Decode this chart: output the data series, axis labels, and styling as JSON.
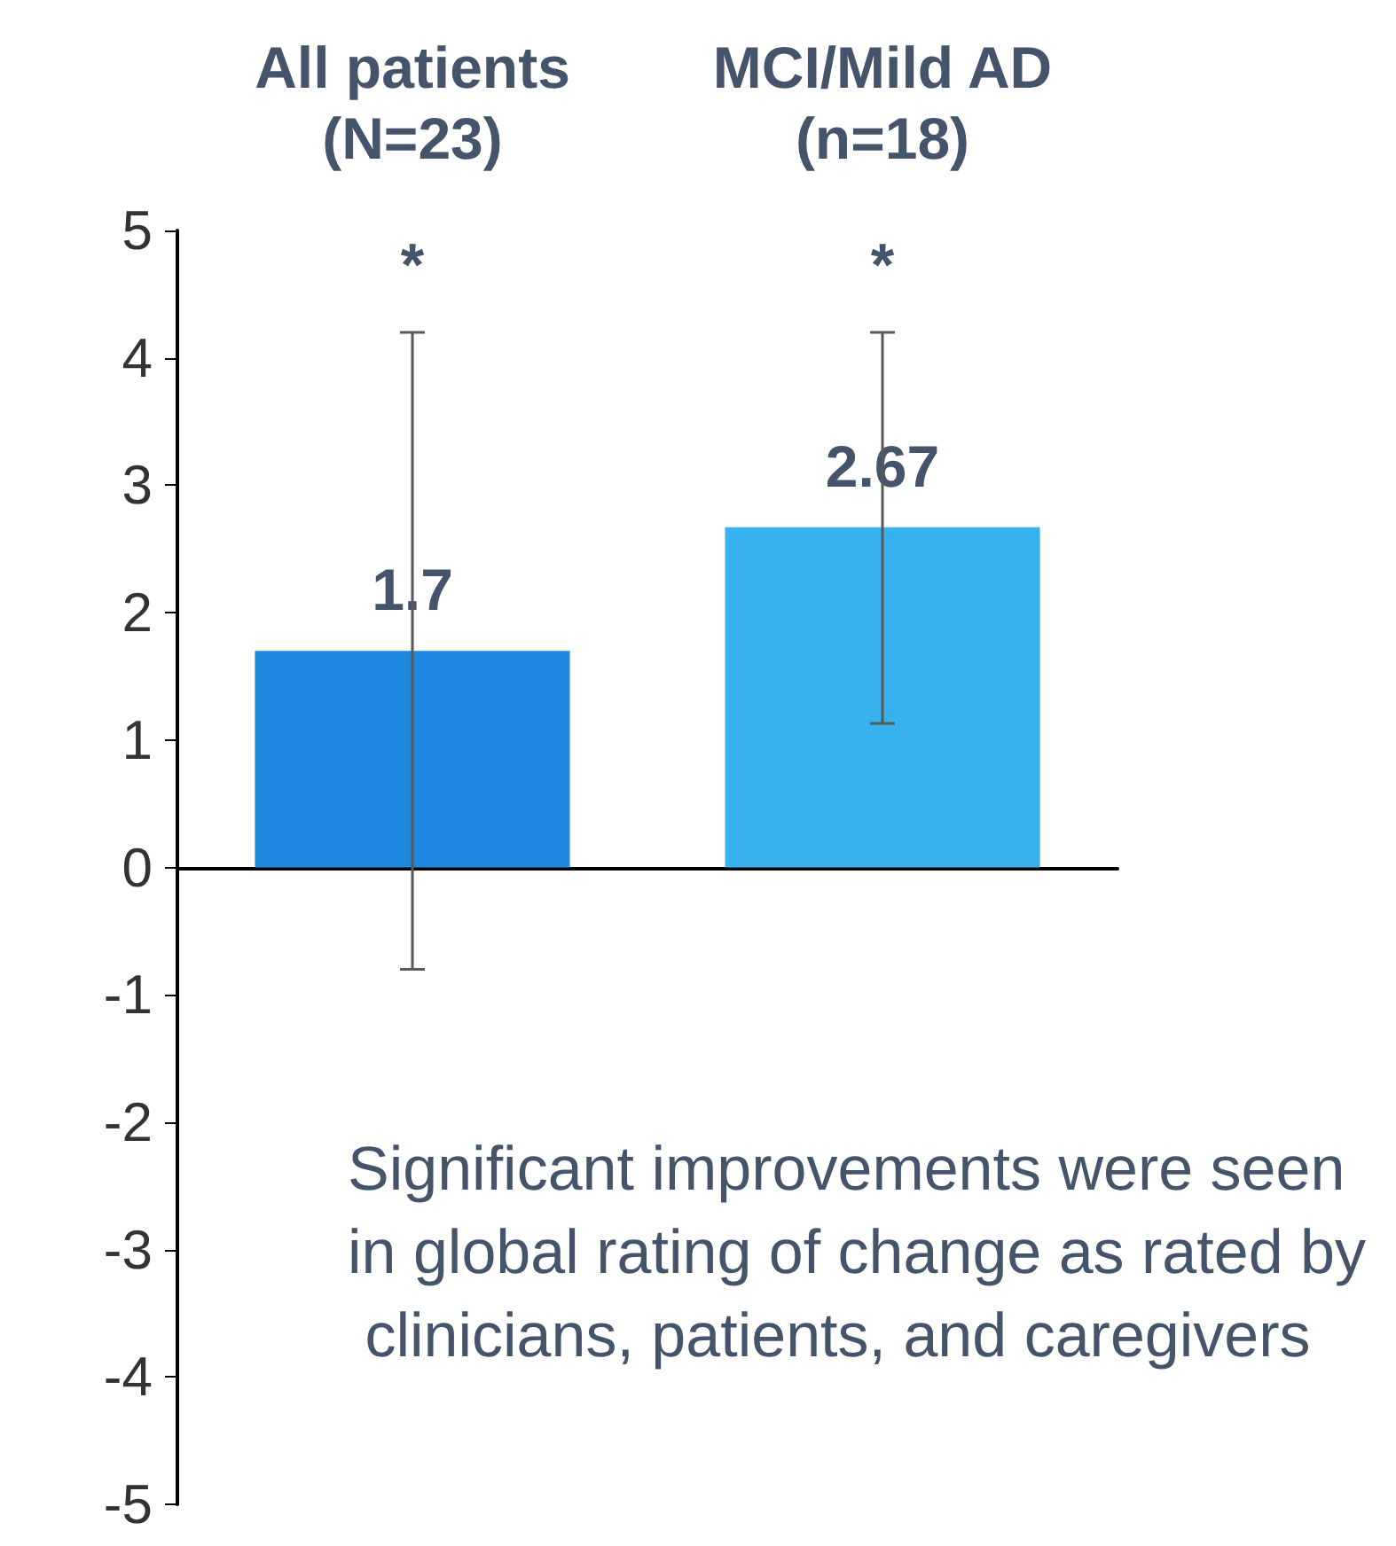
{
  "chart_data": {
    "type": "bar",
    "categories": [
      "All patients\n(N=23)",
      "MCI/Mild AD\n(n=18)"
    ],
    "values": [
      1.7,
      2.67
    ],
    "colors": [
      "#1e88e0",
      "#38b2ee"
    ],
    "errors": [
      [
        -0.8,
        4.2
      ],
      [
        1.13,
        4.2
      ]
    ],
    "data_labels": true,
    "ylim": [
      -5,
      5
    ],
    "yticks": [
      -5,
      -4,
      -3,
      -2,
      -1,
      0,
      1,
      2,
      3,
      4,
      5
    ],
    "annotations": [
      "*",
      "*",
      "Significant improvements were seen in global rating of change as rated by clinicians, patients, and caregivers"
    ]
  }
}
